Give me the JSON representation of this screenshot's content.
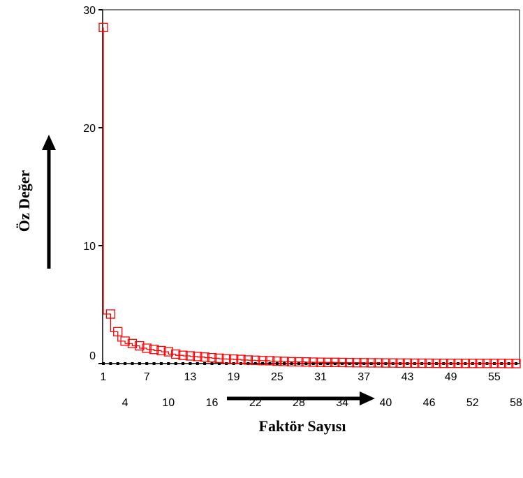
{
  "chart_data": {
    "type": "line",
    "title": "",
    "xlabel": "Faktör Sayısı",
    "ylabel": "Öz Değer",
    "xlim": [
      1,
      58
    ],
    "ylim": [
      0,
      30
    ],
    "x_ticks_upper": [
      "1",
      "7",
      "13",
      "19",
      "25",
      "31",
      "37",
      "43",
      "49",
      "55"
    ],
    "x_ticks_lower": [
      "4",
      "10",
      "16",
      "22",
      "28",
      "34",
      "40",
      "46",
      "52",
      "58"
    ],
    "y_ticks": [
      "0",
      "10",
      "20",
      "30"
    ],
    "marker": "hollow-square",
    "colors": {
      "series": "#ff0000",
      "axis": "#000000",
      "arrow": "#000000"
    },
    "series": [
      {
        "x": [
          1,
          2,
          3,
          4,
          5,
          6,
          7,
          8,
          9,
          10,
          11,
          12,
          13,
          14,
          15,
          16,
          17,
          18,
          19,
          20,
          21,
          22,
          23,
          24,
          25,
          26,
          27,
          28,
          29,
          30,
          31,
          32,
          33,
          34,
          35,
          36,
          37,
          38,
          39,
          40,
          41,
          42,
          43,
          44,
          45,
          46,
          47,
          48,
          49,
          50,
          51,
          52,
          53,
          54,
          55,
          56,
          57,
          58
        ],
        "values": [
          28.5,
          4.2,
          2.7,
          1.9,
          1.7,
          1.5,
          1.3,
          1.2,
          1.1,
          1.0,
          0.8,
          0.7,
          0.65,
          0.6,
          0.55,
          0.5,
          0.45,
          0.4,
          0.38,
          0.35,
          0.3,
          0.28,
          0.25,
          0.24,
          0.2,
          0.18,
          0.16,
          0.15,
          0.14,
          0.12,
          0.11,
          0.1,
          0.1,
          0.09,
          0.08,
          0.07,
          0.07,
          0.06,
          0.06,
          0.05,
          0.05,
          0.04,
          0.04,
          0.03,
          0.03,
          0.03,
          0.02,
          0.02,
          0.02,
          0.02,
          0.01,
          0.01,
          0.01,
          0.01,
          0.01,
          0.01,
          0.0,
          0.0
        ]
      }
    ]
  }
}
